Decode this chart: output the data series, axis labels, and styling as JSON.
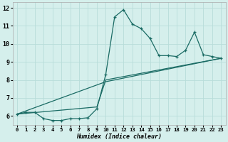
{
  "xlabel": "Humidex (Indice chaleur)",
  "bg_color": "#d5efec",
  "grid_color": "#b8ddd9",
  "line_color": "#1a6b64",
  "xlim": [
    -0.5,
    23.5
  ],
  "ylim": [
    5.5,
    12.3
  ],
  "xticks": [
    0,
    1,
    2,
    3,
    4,
    5,
    6,
    7,
    8,
    9,
    10,
    11,
    12,
    13,
    14,
    15,
    16,
    17,
    18,
    19,
    20,
    21,
    22,
    23
  ],
  "yticks": [
    6,
    7,
    8,
    9,
    10,
    11,
    12
  ],
  "line1_x": [
    0,
    1,
    2,
    3,
    4,
    5,
    6,
    7,
    8,
    9,
    10,
    11,
    12,
    13,
    14,
    15,
    16,
    17,
    18,
    19,
    20,
    21,
    22,
    23
  ],
  "line1_y": [
    6.1,
    6.2,
    6.2,
    5.85,
    5.75,
    5.75,
    5.85,
    5.85,
    5.9,
    6.4,
    8.3,
    11.5,
    11.9,
    11.1,
    10.85,
    10.3,
    9.35,
    9.35,
    9.3,
    9.65,
    10.65,
    9.4,
    9.3,
    9.2
  ],
  "line2_x": [
    0,
    10,
    23
  ],
  "line2_y": [
    6.1,
    7.9,
    9.2
  ],
  "line3_x": [
    0,
    9,
    10,
    23
  ],
  "line3_y": [
    6.1,
    6.5,
    8.0,
    9.2
  ]
}
